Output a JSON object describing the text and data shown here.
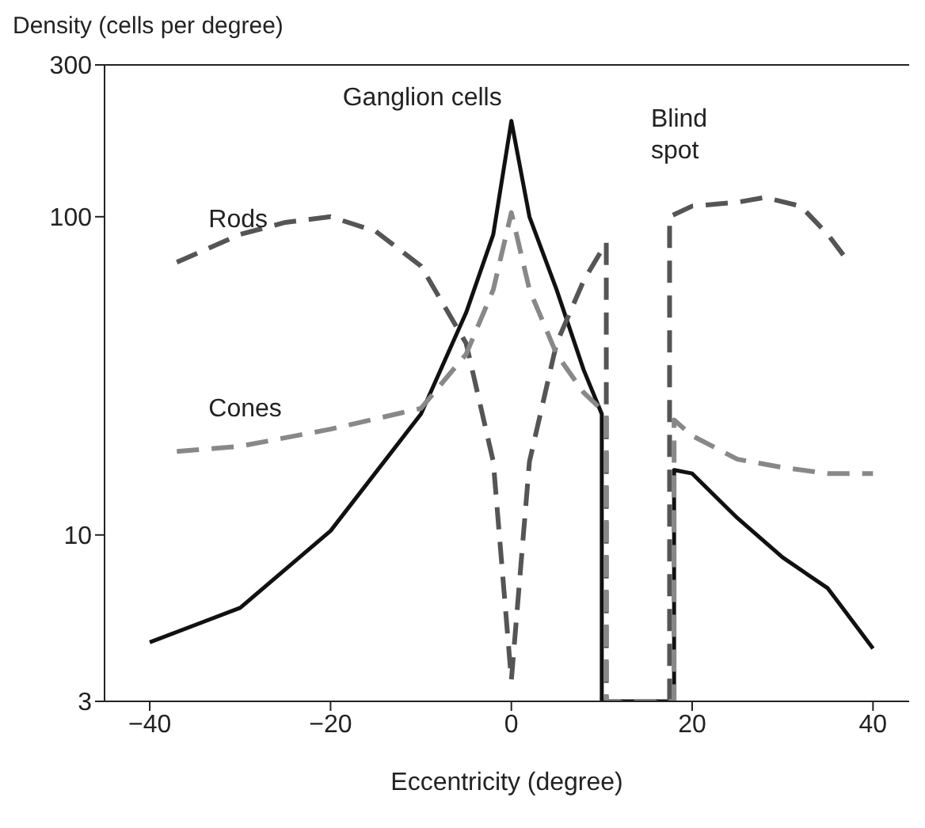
{
  "chart_data": {
    "type": "line",
    "xlabel": "Eccentricity (degree)",
    "ylabel": "Density (cells per degree)",
    "log": "y",
    "marker": "none",
    "xlim": [
      -45,
      44
    ],
    "xticks": [
      {
        "value": -40,
        "label": "−40"
      },
      {
        "value": -20,
        "label": "−20"
      },
      0,
      20,
      40
    ],
    "ylim": [
      3,
      300
    ],
    "yticks": [
      3,
      10,
      100,
      300
    ],
    "annotations": [
      "Blind spot"
    ],
    "series": [
      {
        "name": "Ganglion cells",
        "color": "#111111",
        "line_style": "solid",
        "x": [
          -40,
          -30,
          -20,
          -10,
          -5,
          -2,
          0,
          2,
          5,
          8,
          10,
          10,
          18,
          18,
          20,
          25,
          30,
          35,
          40
        ],
        "values": [
          4.6,
          5.9,
          10.3,
          24,
          50,
          88,
          200,
          100,
          59,
          33,
          24,
          3,
          3,
          16,
          15.6,
          11.3,
          8.5,
          6.8,
          4.4
        ]
      },
      {
        "name": "Rods",
        "color": "#555555",
        "line_style": "dashed",
        "x": [
          -37,
          -30,
          -25,
          -20,
          -15,
          -10,
          -5,
          -2,
          0,
          2,
          5,
          8,
          10.5,
          10.5,
          17.5,
          17.5,
          20,
          25,
          28,
          32,
          35,
          37
        ],
        "values": [
          72,
          88,
          96,
          100,
          90,
          70,
          40,
          17,
          3.5,
          17,
          40,
          63,
          83,
          3,
          3,
          100,
          108,
          111,
          115,
          108,
          88,
          74
        ]
      },
      {
        "name": "Cones",
        "color": "#888888",
        "line_style": "dashed",
        "x": [
          -37,
          -30,
          -20,
          -10,
          -5,
          -2,
          0,
          2,
          5,
          8,
          10.5,
          10.5,
          18,
          18,
          20,
          25,
          30,
          35,
          40
        ],
        "values": [
          18.3,
          19,
          21.5,
          25,
          37,
          59,
          103,
          59,
          37,
          28,
          24,
          3,
          3,
          23,
          20.5,
          17.3,
          16.3,
          15.6,
          15.6
        ]
      }
    ]
  }
}
